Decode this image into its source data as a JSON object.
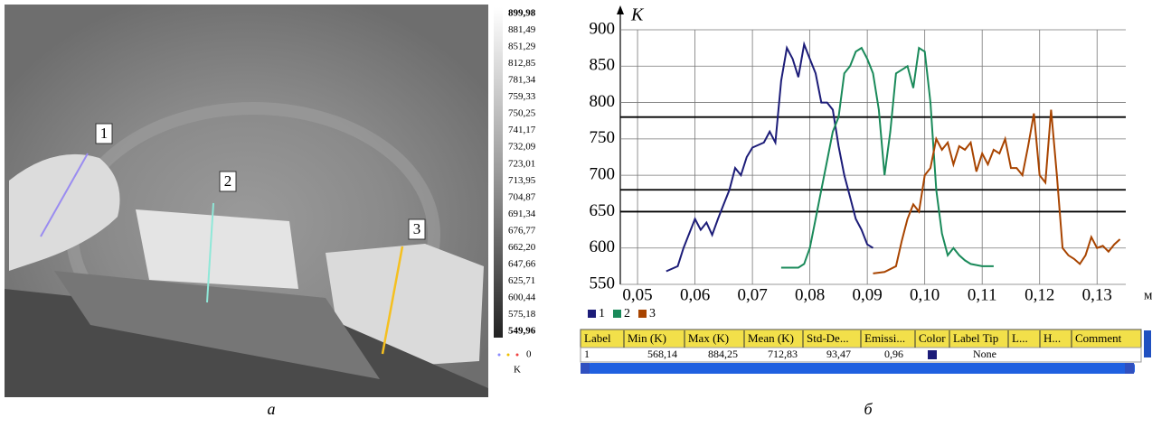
{
  "thermal_image": {
    "markers": [
      "1",
      "2",
      "3"
    ],
    "scale_labels": [
      "899,98",
      "881,49",
      "851,29",
      "812,85",
      "781,34",
      "759,33",
      "750,25",
      "741,17",
      "732,09",
      "723,01",
      "713,95",
      "704,87",
      "691,34",
      "676,77",
      "662,20",
      "647,66",
      "625,71",
      "600,44",
      "575,18",
      "549,96"
    ],
    "scale_zero": "0",
    "scale_unit": "K",
    "caption": "a"
  },
  "chart_data": {
    "type": "line",
    "y_label": "K",
    "x_label": "м",
    "caption": "б",
    "xlim": [
      0.047,
      0.135
    ],
    "ylim": [
      550,
      900
    ],
    "xticks": [
      {
        "value": 0.05,
        "label": "0,05"
      },
      {
        "value": 0.06,
        "label": "0,06"
      },
      {
        "value": 0.07,
        "label": "0,07"
      },
      {
        "value": 0.08,
        "label": "0,08"
      },
      {
        "value": 0.09,
        "label": "0,09"
      },
      {
        "value": 0.1,
        "label": "0,10"
      },
      {
        "value": 0.11,
        "label": "0,11"
      },
      {
        "value": 0.12,
        "label": "0,12"
      },
      {
        "value": 0.13,
        "label": "0,13"
      }
    ],
    "yticks": [
      550,
      600,
      650,
      700,
      750,
      800,
      850,
      900
    ],
    "grid": true,
    "reference_lines": [
      780,
      680,
      650
    ],
    "series": [
      {
        "name": "1",
        "color": "#1c1c78",
        "x": [
          0.055,
          0.057,
          0.058,
          0.06,
          0.061,
          0.062,
          0.063,
          0.064,
          0.065,
          0.066,
          0.067,
          0.068,
          0.069,
          0.07,
          0.072,
          0.073,
          0.074,
          0.075,
          0.076,
          0.077,
          0.078,
          0.079,
          0.08,
          0.081,
          0.082,
          0.083,
          0.084,
          0.085,
          0.086,
          0.087,
          0.088,
          0.089,
          0.09,
          0.091
        ],
        "values": [
          568,
          575,
          600,
          640,
          625,
          635,
          618,
          640,
          660,
          680,
          710,
          700,
          725,
          738,
          745,
          760,
          745,
          830,
          875,
          860,
          835,
          880,
          860,
          840,
          800,
          800,
          790,
          740,
          700,
          670,
          640,
          625,
          605,
          600
        ]
      },
      {
        "name": "2",
        "color": "#1a8a5a",
        "x": [
          0.075,
          0.078,
          0.079,
          0.08,
          0.081,
          0.082,
          0.083,
          0.084,
          0.085,
          0.086,
          0.087,
          0.088,
          0.089,
          0.09,
          0.091,
          0.092,
          0.093,
          0.094,
          0.095,
          0.096,
          0.097,
          0.098,
          0.099,
          0.1,
          0.101,
          0.102,
          0.103,
          0.104,
          0.105,
          0.106,
          0.107,
          0.108,
          0.11,
          0.112
        ],
        "values": [
          573,
          573,
          578,
          600,
          640,
          680,
          720,
          760,
          780,
          840,
          850,
          870,
          875,
          860,
          840,
          790,
          700,
          760,
          840,
          845,
          850,
          820,
          875,
          870,
          800,
          680,
          620,
          590,
          600,
          590,
          583,
          578,
          575,
          575
        ]
      },
      {
        "name": "3",
        "color": "#a84400",
        "x": [
          0.091,
          0.093,
          0.095,
          0.096,
          0.097,
          0.098,
          0.099,
          0.1,
          0.101,
          0.102,
          0.103,
          0.104,
          0.105,
          0.106,
          0.107,
          0.108,
          0.109,
          0.11,
          0.111,
          0.112,
          0.113,
          0.114,
          0.115,
          0.116,
          0.117,
          0.118,
          0.119,
          0.12,
          0.121,
          0.122,
          0.123,
          0.124,
          0.125,
          0.126,
          0.127,
          0.128,
          0.129,
          0.13,
          0.131,
          0.132,
          0.133,
          0.134
        ],
        "values": [
          565,
          567,
          575,
          610,
          640,
          660,
          650,
          700,
          710,
          750,
          735,
          745,
          715,
          740,
          735,
          745,
          705,
          730,
          715,
          735,
          730,
          750,
          710,
          710,
          700,
          740,
          785,
          700,
          690,
          790,
          700,
          600,
          590,
          585,
          578,
          590,
          615,
          600,
          603,
          595,
          605,
          612
        ]
      }
    ]
  },
  "table": {
    "header": [
      "Label",
      "Min (K)",
      "Max (K)",
      "Mean (K)",
      "Std-De...",
      "Emissi...",
      "Color",
      "Label Tip",
      "L...",
      "H...",
      "Comment"
    ],
    "rows": [
      [
        "1",
        "568,14",
        "884,25",
        "712,83",
        "93,47",
        "0,96",
        "",
        "None",
        "",
        "",
        ""
      ]
    ]
  }
}
